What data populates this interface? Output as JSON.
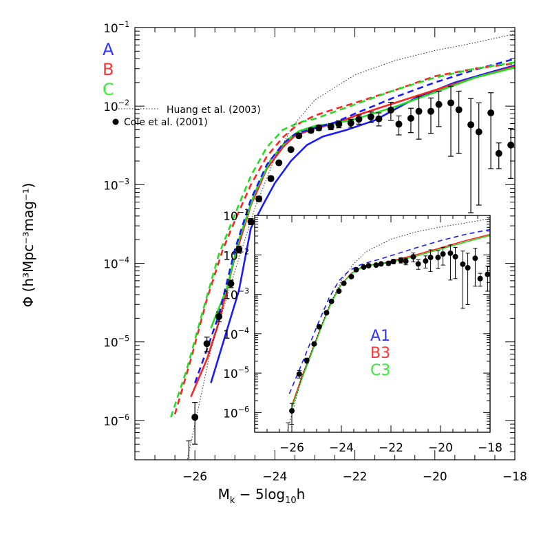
{
  "chart_data": [
    {
      "type": "line",
      "xlabel_main": "M",
      "xlabel_sub": "k",
      "xlabel_rest1": " − 5log",
      "xlabel_sub2": "10",
      "xlabel_rest2": "h",
      "ylabel": "Φ (h³Mpc⁻³mag⁻¹)",
      "xlim": [
        -27.5,
        -18
      ],
      "ylim_log10": [
        -6.5,
        -1
      ],
      "log_y": true,
      "x_ticks": [
        -26,
        -24,
        -22,
        -20,
        -18
      ],
      "x_tick_labels": [
        "−26",
        "−24",
        "−22",
        "−20",
        "−18"
      ],
      "y_ticks_log10": [
        -6,
        -5,
        -4,
        -3,
        -2,
        -1
      ],
      "y_tick_labels": [
        {
          "base": "10",
          "exp": "−6"
        },
        {
          "base": "10",
          "exp": "−5"
        },
        {
          "base": "10",
          "exp": "−4"
        },
        {
          "base": "10",
          "exp": "−3"
        },
        {
          "base": "10",
          "exp": "−2"
        },
        {
          "base": "10",
          "exp": "−1"
        }
      ],
      "legend_models": [
        {
          "label": "A",
          "color": "#3333ff"
        },
        {
          "label": "B",
          "color": "#ff3333"
        },
        {
          "label": "C",
          "color": "#33ee33"
        }
      ],
      "legend_refs": {
        "huang": "Huang et al. (2003)",
        "cole": "Cole et al. (2001)"
      },
      "series": [
        {
          "model": "A",
          "style": "solid",
          "color": "#1a1aff",
          "x": [
            -25.6,
            -25.2,
            -24.9,
            -24.6,
            -24.3,
            -24.0,
            -23.6,
            -23.2,
            -22.8,
            -22.2,
            -21.5,
            -20.5,
            -19.5,
            -18.5,
            -18.0
          ],
          "y": [
            3e-06,
            1.4e-05,
            4.5e-05,
            0.00028,
            0.00055,
            0.00105,
            0.002,
            0.0032,
            0.0041,
            0.005,
            0.0066,
            0.0125,
            0.02,
            0.028,
            0.033
          ]
        },
        {
          "model": "B",
          "style": "solid",
          "color": "#ff2222",
          "x": [
            -26.1,
            -25.7,
            -25.4,
            -25.0,
            -24.6,
            -24.2,
            -23.8,
            -23.5,
            -23.0,
            -22.5,
            -22.0,
            -21.0,
            -20.0,
            -19.0,
            -18.0
          ],
          "y": [
            2e-06,
            6e-06,
            1.8e-05,
            0.00012,
            0.00055,
            0.0016,
            0.003,
            0.0042,
            0.0052,
            0.006,
            0.0075,
            0.011,
            0.016,
            0.023,
            0.032
          ]
        },
        {
          "model": "C",
          "style": "solid",
          "color": "#22dd22",
          "x": [
            -25.6,
            -25.2,
            -24.9,
            -24.5,
            -24.1,
            -23.7,
            -23.4,
            -23.0,
            -22.5,
            -22.0,
            -21.0,
            -20.0,
            -19.0,
            -18.0
          ],
          "y": [
            1.5e-05,
            4.8e-05,
            0.0002,
            0.0008,
            0.0021,
            0.0037,
            0.0048,
            0.0056,
            0.006,
            0.0068,
            0.0098,
            0.015,
            0.023,
            0.031
          ]
        },
        {
          "model": "A",
          "style": "dashed",
          "color": "#1a1aff",
          "x": [
            -26.0,
            -25.7,
            -25.4,
            -25.0,
            -24.6,
            -24.2,
            -23.8,
            -23.5,
            -23.0,
            -22.5,
            -22.0,
            -21.0,
            -20.0,
            -19.0,
            -18.0
          ],
          "y": [
            3e-06,
            8e-06,
            2.2e-05,
            0.00015,
            0.00065,
            0.0018,
            0.0033,
            0.0044,
            0.0053,
            0.0062,
            0.008,
            0.013,
            0.02,
            0.029,
            0.04
          ]
        },
        {
          "model": "B",
          "style": "dashed",
          "color": "#ff2222",
          "x": [
            -26.5,
            -26.1,
            -25.7,
            -25.3,
            -25.0,
            -24.6,
            -24.2,
            -23.8,
            -23.4,
            -23.0,
            -22.5,
            -22.0,
            -21.0,
            -20.0,
            -19.0,
            -18.0
          ],
          "y": [
            1.2e-06,
            6e-06,
            3.5e-05,
            0.00015,
            0.00035,
            0.001,
            0.0023,
            0.004,
            0.006,
            0.0076,
            0.0092,
            0.011,
            0.016,
            0.024,
            0.03,
            0.035
          ]
        },
        {
          "model": "C",
          "style": "dashed",
          "color": "#22dd22",
          "x": [
            -26.6,
            -26.2,
            -25.8,
            -25.4,
            -25.0,
            -24.6,
            -24.2,
            -23.8,
            -23.4,
            -23.0,
            -22.5,
            -22.0,
            -21.0,
            -20.0,
            -19.0,
            -18.0
          ],
          "y": [
            1.1e-06,
            4.5e-06,
            2.5e-05,
            0.00013,
            0.00042,
            0.0013,
            0.003,
            0.005,
            0.0062,
            0.0069,
            0.0085,
            0.0105,
            0.016,
            0.023,
            0.03,
            0.036
          ]
        },
        {
          "model": "Huang",
          "style": "dotted",
          "color": "#222222",
          "x": [
            -26.2,
            -25.6,
            -25.0,
            -24.5,
            -24.0,
            -23.5,
            -23.0,
            -22.0,
            -21.0,
            -20.0,
            -19.0,
            -18.0
          ],
          "y": [
            3e-07,
            8e-06,
            8e-05,
            0.0005,
            0.0022,
            0.006,
            0.012,
            0.025,
            0.038,
            0.051,
            0.064,
            0.083
          ]
        }
      ],
      "points": {
        "label": "Cole et al. (2001)",
        "x": [
          -26.0,
          -25.7,
          -25.4,
          -25.1,
          -24.9,
          -24.6,
          -24.4,
          -24.1,
          -23.9,
          -23.6,
          -23.4,
          -23.1,
          -22.9,
          -22.6,
          -22.4,
          -22.1,
          -21.9,
          -21.6,
          -21.4,
          -21.1,
          -20.9,
          -20.6,
          -20.4,
          -20.1,
          -19.9,
          -19.6,
          -19.4,
          -19.1,
          -18.9,
          -18.6,
          -18.4,
          -18.1
        ],
        "y": [
          1.1e-06,
          9.5e-06,
          2.1e-05,
          5.5e-05,
          0.00015,
          0.00034,
          0.00066,
          0.0012,
          0.0019,
          0.0028,
          0.0042,
          0.0049,
          0.0053,
          0.0055,
          0.0059,
          0.0061,
          0.0068,
          0.0073,
          0.0069,
          0.0089,
          0.0059,
          0.007,
          0.0086,
          0.0086,
          0.0105,
          0.011,
          0.009,
          0.0058,
          0.0047,
          0.0082,
          0.0025,
          0.0032
        ],
        "y_low": [
          5e-07,
          7.5e-06,
          1.8e-05,
          4.9e-05,
          0.000135,
          0.00031,
          0.00061,
          0.00112,
          0.0018,
          0.00265,
          0.00395,
          0.0046,
          0.0049,
          0.005,
          0.0053,
          0.0054,
          0.0059,
          0.0062,
          0.0056,
          0.0066,
          0.0043,
          0.0046,
          0.0038,
          0.0045,
          0.0055,
          0.0023,
          0.0025,
          0.00044,
          0.00055,
          0.0016,
          0.0016,
          0.0012
        ],
        "y_high": [
          1.7e-06,
          1.15e-05,
          2.4e-05,
          6.1e-05,
          0.000165,
          0.00037,
          0.00071,
          0.00128,
          0.002,
          0.00295,
          0.00445,
          0.0052,
          0.0057,
          0.006,
          0.0065,
          0.0068,
          0.0077,
          0.0084,
          0.0082,
          0.0112,
          0.0075,
          0.0094,
          0.0134,
          0.0127,
          0.0155,
          0.0179,
          0.0155,
          0.0125,
          0.011,
          0.0148,
          0.0034,
          0.0052
        ]
      },
      "extra_errorbar": {
        "x": -26.15,
        "y_low": 3e-07,
        "y_high": 5.5e-07
      }
    },
    {
      "type": "line",
      "inset": true,
      "xlim": [
        -27.5,
        -18
      ],
      "ylim_log10": [
        -6.5,
        -1
      ],
      "log_y": true,
      "x_ticks": [
        -26,
        -24,
        -22,
        -20,
        -18
      ],
      "x_tick_labels": [
        "−26",
        "−24",
        "−22",
        "−20",
        "−18"
      ],
      "y_ticks_log10": [
        -6,
        -5,
        -4,
        -3,
        -2,
        -1
      ],
      "y_tick_labels": [
        {
          "base": "10",
          "exp": "−6"
        },
        {
          "base": "10",
          "exp": "−5"
        },
        {
          "base": "10",
          "exp": "−4"
        },
        {
          "base": "10",
          "exp": "−3"
        },
        {
          "base": "10",
          "exp": "−2"
        },
        {
          "base": "10",
          "exp": "−1"
        }
      ],
      "legend_models": [
        {
          "label": "A1",
          "color": "#3333ff"
        },
        {
          "label": "B3",
          "color": "#ff3333"
        },
        {
          "label": "C3",
          "color": "#33ee33"
        }
      ],
      "series": [
        {
          "model": "A1",
          "style": "dashed",
          "color": "#1a1aff",
          "x": [
            -26.1,
            -25.7,
            -25.3,
            -24.9,
            -24.5,
            -24.1,
            -23.7,
            -23.3,
            -22.9,
            -22.5,
            -22.0,
            -21.0,
            -20.0,
            -19.0,
            -18.0
          ],
          "y": [
            3e-06,
            1.2e-05,
            5e-05,
            0.00021,
            0.0008,
            0.0022,
            0.0039,
            0.0054,
            0.0065,
            0.0076,
            0.0095,
            0.015,
            0.023,
            0.033,
            0.044
          ]
        },
        {
          "model": "B3",
          "style": "solid",
          "color": "#ff2222",
          "x": [
            -26.0,
            -25.6,
            -25.2,
            -24.8,
            -24.4,
            -24.0,
            -23.6,
            -23.2,
            -22.8,
            -22.3,
            -22.0,
            -21.0,
            -20.0,
            -19.0,
            -18.0
          ],
          "y": [
            1.5e-06,
            8e-06,
            3.5e-05,
            0.00016,
            0.00065,
            0.0018,
            0.0034,
            0.0048,
            0.0056,
            0.0062,
            0.007,
            0.01,
            0.015,
            0.023,
            0.033
          ]
        },
        {
          "model": "C3",
          "style": "solid",
          "color": "#22dd22",
          "x": [
            -26.0,
            -25.6,
            -25.2,
            -24.8,
            -24.4,
            -24.0,
            -23.6,
            -23.2,
            -22.8,
            -22.3,
            -22.0,
            -21.0,
            -20.0,
            -19.0,
            -18.0
          ],
          "y": [
            1.3e-06,
            7e-06,
            3.2e-05,
            0.00015,
            0.00062,
            0.00175,
            0.0033,
            0.0047,
            0.0055,
            0.006,
            0.0066,
            0.0092,
            0.014,
            0.021,
            0.031
          ]
        },
        {
          "model": "Huang",
          "style": "dotted",
          "color": "#222222",
          "x": [
            -26.2,
            -25.6,
            -25.0,
            -24.5,
            -24.0,
            -23.5,
            -23.0,
            -22.0,
            -21.0,
            -20.0,
            -19.0,
            -18.0
          ],
          "y": [
            3e-07,
            8e-06,
            8e-05,
            0.0005,
            0.0022,
            0.006,
            0.012,
            0.025,
            0.038,
            0.051,
            0.064,
            0.083
          ]
        }
      ]
    }
  ]
}
